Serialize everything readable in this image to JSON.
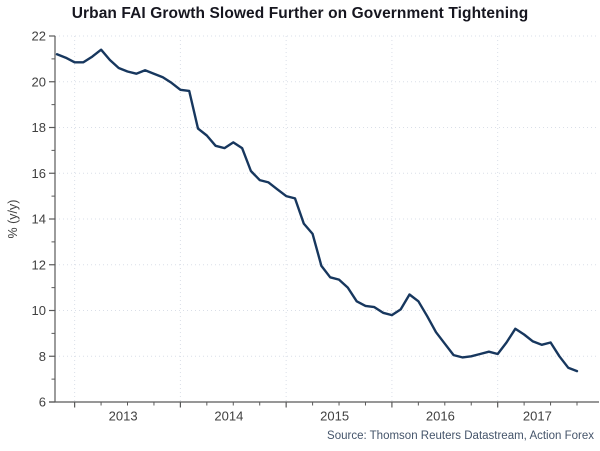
{
  "chart_data": {
    "type": "line",
    "title": "Urban FAI Growth Slowed Further on Government Tightening",
    "ylabel": "% (y/y)",
    "source": "Source: Thomson Reuters Datastream, Action Forex",
    "ylim": [
      6,
      22
    ],
    "y_major_ticks": [
      6,
      8,
      10,
      12,
      14,
      16,
      18,
      20,
      22
    ],
    "x_year_labels": [
      "2013",
      "2014",
      "2015",
      "2016",
      "2017"
    ],
    "grid": "dotted-both-axes",
    "legend": "none",
    "colors": {
      "line": "#17375E",
      "axis": "#595959",
      "grid": "#dadfe8",
      "tick_text": "#404040",
      "title_text": "#16161f",
      "source_text": "#44546A"
    },
    "series": [
      {
        "name": "Urban fixed asset investment growth",
        "unit": "% y/y",
        "months": [
          "2012-11",
          "2012-12",
          "2013-01",
          "2013-02",
          "2013-03",
          "2013-04",
          "2013-05",
          "2013-06",
          "2013-07",
          "2013-08",
          "2013-09",
          "2013-10",
          "2013-11",
          "2013-12",
          "2014-01",
          "2014-02",
          "2014-03",
          "2014-04",
          "2014-05",
          "2014-06",
          "2014-07",
          "2014-08",
          "2014-09",
          "2014-10",
          "2014-11",
          "2014-12",
          "2015-01",
          "2015-02",
          "2015-03",
          "2015-04",
          "2015-05",
          "2015-06",
          "2015-07",
          "2015-08",
          "2015-09",
          "2015-10",
          "2015-11",
          "2015-12",
          "2016-01",
          "2016-02",
          "2016-03",
          "2016-04",
          "2016-05",
          "2016-06",
          "2016-07",
          "2016-08",
          "2016-09",
          "2016-10",
          "2016-11",
          "2016-12",
          "2017-01",
          "2017-02",
          "2017-03",
          "2017-04",
          "2017-05",
          "2017-06",
          "2017-07",
          "2017-08",
          "2017-09",
          "2017-10"
        ],
        "values": [
          21.2,
          21.05,
          20.85,
          20.85,
          21.1,
          21.4,
          20.95,
          20.6,
          20.45,
          20.35,
          20.5,
          20.35,
          20.2,
          19.95,
          19.65,
          19.6,
          17.95,
          17.65,
          17.2,
          17.1,
          17.35,
          17.1,
          16.1,
          15.7,
          15.6,
          15.3,
          15.0,
          14.9,
          13.8,
          13.35,
          11.95,
          11.45,
          11.35,
          11.0,
          10.4,
          10.2,
          10.15,
          9.9,
          9.8,
          10.05,
          10.7,
          10.4,
          9.75,
          9.05,
          8.55,
          8.05,
          7.95,
          8.0,
          8.1,
          8.2,
          8.1,
          8.6,
          9.2,
          8.95,
          8.65,
          8.5,
          8.6,
          8.0,
          7.5,
          7.35
        ]
      }
    ]
  }
}
